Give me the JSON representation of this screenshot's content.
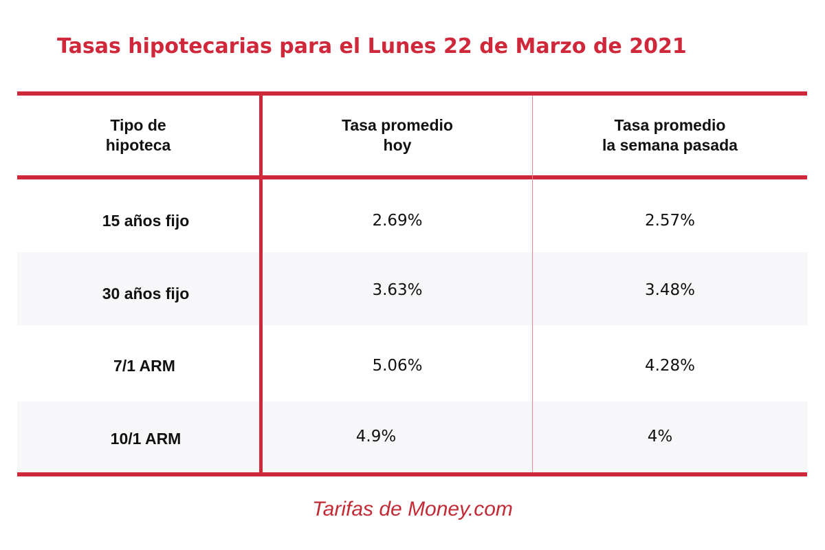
{
  "chart_data": {
    "type": "table",
    "title": "Tasas hipotecarias para el Lunes 22 de Marzo de 2021",
    "columns": [
      [
        "Tipo de",
        "hipoteca"
      ],
      [
        "Tasa promedio",
        "hoy"
      ],
      [
        "Tasa promedio",
        "la semana pasada"
      ]
    ],
    "rows": [
      {
        "label": "15 años fijo",
        "today": "2.69%",
        "last_week": "2.57%"
      },
      {
        "label": "30 años fijo",
        "today": "3.63%",
        "last_week": "3.48%"
      },
      {
        "label": "7/1 ARM",
        "today": "5.06%",
        "last_week": "4.28%"
      },
      {
        "label": "10/1 ARM",
        "today": "4.9%",
        "last_week": "4%"
      }
    ],
    "source": "Tarifas de Money.com"
  },
  "colors": {
    "accent": "#d0283b",
    "stripe": "#f7f7f9",
    "text": "#111111"
  }
}
